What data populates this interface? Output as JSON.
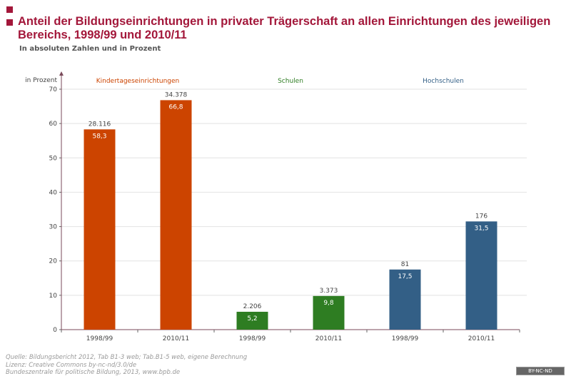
{
  "title": "Anteil der Bildungseinrichtungen in privater Trägerschaft an allen Einrichtungen des jeweiligen Bereichs, 1998/99 und 2010/11",
  "subtitle": "In absoluten Zahlen und in Prozent",
  "source": [
    "Quelle: Bildungsbericht 2012, Tab B1-3 web; Tab.B1-5 web, eigene Berechnung",
    "Lizenz: Creative Commons by-nc-nd/3.0/de",
    "Bundeszentrale für politische Bildung, 2013, www.bpb.de"
  ],
  "license_badge": "BY-NC-ND",
  "chart_data": {
    "type": "bar",
    "ylabel": "in Prozent",
    "ylim": [
      0,
      70
    ],
    "yticks": [
      0,
      10,
      20,
      30,
      40,
      50,
      60,
      70
    ],
    "grid": true,
    "groups": [
      {
        "name": "Kindertageseinrichtungen",
        "color": "#cc4400"
      },
      {
        "name": "Schulen",
        "color": "#2e7d22"
      },
      {
        "name": "Hochschulen",
        "color": "#335f86"
      }
    ],
    "categories": [
      "1998/99",
      "2010/11",
      "1998/99",
      "2010/11",
      "1998/99",
      "2010/11"
    ],
    "group_index": [
      0,
      0,
      1,
      1,
      2,
      2
    ],
    "values": [
      58.3,
      66.8,
      5.2,
      9.8,
      17.5,
      31.5
    ],
    "value_labels": [
      "58,3",
      "66,8",
      "5,2",
      "9,8",
      "17,5",
      "31,5"
    ],
    "absolute_labels": [
      "28.116",
      "34.378",
      "2.206",
      "3.373",
      "81",
      "176"
    ]
  }
}
